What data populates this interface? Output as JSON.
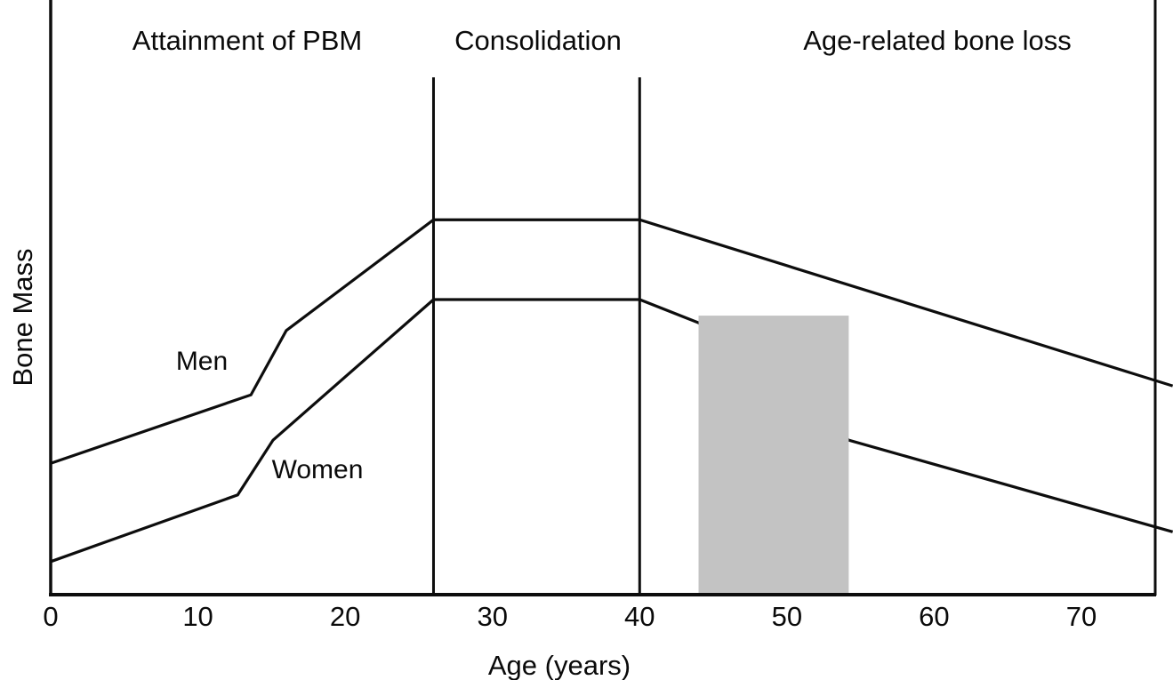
{
  "figure": {
    "x_axis_label": "Age (years)",
    "y_axis_label": "Bone Mass",
    "men_label": "Men",
    "women_label": "Women"
  },
  "chart_data": {
    "type": "line",
    "title": "",
    "xlabel": "Age (years)",
    "ylabel": "Bone Mass",
    "xlim": [
      0,
      75
    ],
    "ylim": [
      0,
      100
    ],
    "y_axis_units": "unlabeled (relative bone mass)",
    "grid": false,
    "x_ticks": [
      0,
      10,
      20,
      30,
      40,
      50,
      60,
      70
    ],
    "phases": [
      {
        "label": "Attainment of PBM",
        "x_start": 0,
        "x_end": 26
      },
      {
        "label": "Consolidation",
        "x_start": 26,
        "x_end": 40
      },
      {
        "label": "Age-related bone loss",
        "x_start": 40,
        "x_end": 75
      }
    ],
    "phase_divider_ages": [
      26,
      40
    ],
    "series": [
      {
        "name": "Men",
        "points": [
          [
            0,
            22.2
          ],
          [
            13.6,
            33.7
          ],
          [
            16,
            44.5
          ],
          [
            26,
            63.1
          ],
          [
            40,
            63.1
          ],
          [
            76.2,
            35.2
          ]
        ]
      },
      {
        "name": "Women",
        "points": [
          [
            0,
            5.7
          ],
          [
            12.7,
            16.9
          ],
          [
            15.1,
            26.1
          ],
          [
            26,
            49.7
          ],
          [
            40,
            49.7
          ],
          [
            44,
            45.8
          ],
          [
            54.2,
            26.1
          ],
          [
            76.2,
            10.7
          ]
        ]
      }
    ],
    "highlight_band": {
      "x_start": 44,
      "x_end": 54.2,
      "y_bottom": 0,
      "y_top": 47,
      "color": "#c3c3c3"
    },
    "line_color": "#0d0d0d"
  }
}
